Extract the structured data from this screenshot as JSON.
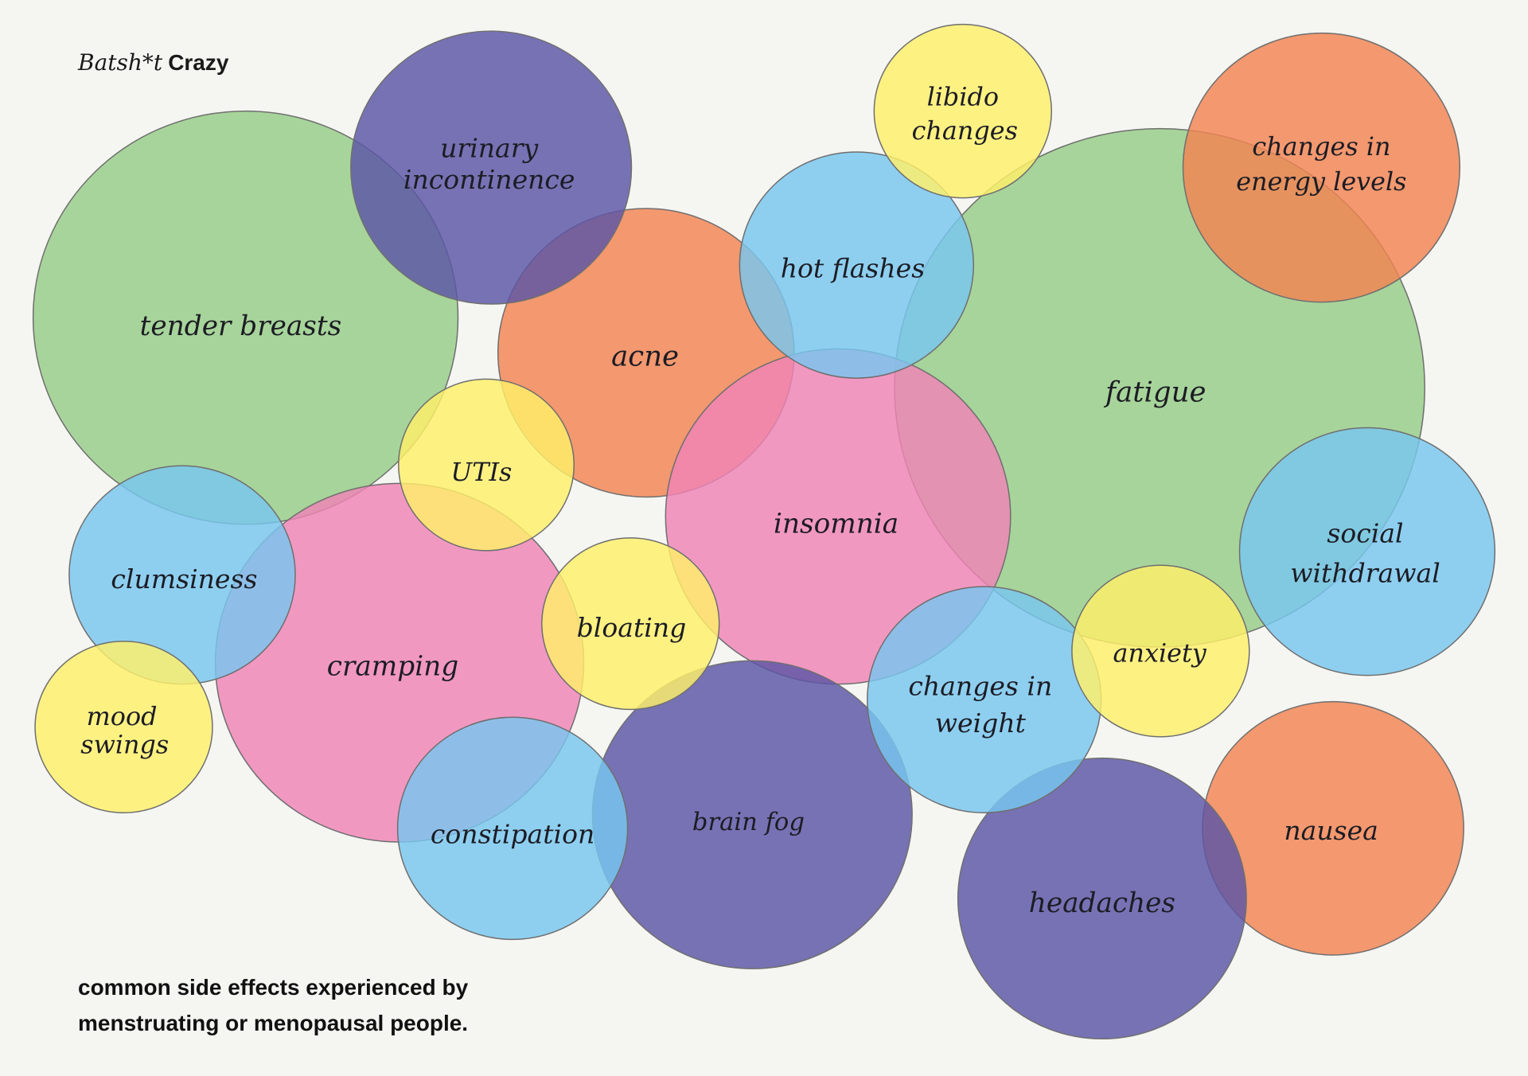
{
  "brand": {
    "italic_part": "Batsh*t",
    "bold_part": "Crazy"
  },
  "caption": {
    "line1": "common side effects experienced by",
    "line2": "menstruating or menopausal people."
  },
  "colors": {
    "background": "#f5f5f2",
    "green": "#96cd86",
    "purple": "#5c55a6",
    "orange": "#f38452",
    "yellow": "#fff069",
    "blue": "#78c7ef",
    "pink": "#f084b6",
    "outline": "#6f6f6f"
  },
  "bubbles": [
    {
      "label": "tender breasts",
      "color": "green"
    },
    {
      "label": "fatigue",
      "color": "green"
    },
    {
      "label": "acne",
      "color": "orange"
    },
    {
      "label": "changes in energy levels",
      "color": "orange"
    },
    {
      "label": "nausea",
      "color": "orange"
    },
    {
      "label": "cramping",
      "color": "pink"
    },
    {
      "label": "insomnia",
      "color": "pink"
    },
    {
      "label": "urinary incontinence",
      "color": "purple"
    },
    {
      "label": "brain fog",
      "color": "purple"
    },
    {
      "label": "headaches",
      "color": "purple"
    },
    {
      "label": "hot flashes",
      "color": "blue"
    },
    {
      "label": "clumsiness",
      "color": "blue"
    },
    {
      "label": "constipation",
      "color": "blue"
    },
    {
      "label": "social withdrawal",
      "color": "blue"
    },
    {
      "label": "changes in weight",
      "color": "blue"
    },
    {
      "label": "libido changes",
      "color": "yellow"
    },
    {
      "label": "UTIs",
      "color": "yellow"
    },
    {
      "label": "bloating",
      "color": "yellow"
    },
    {
      "label": "mood swings",
      "color": "yellow"
    },
    {
      "label": "anxiety",
      "color": "yellow"
    }
  ]
}
